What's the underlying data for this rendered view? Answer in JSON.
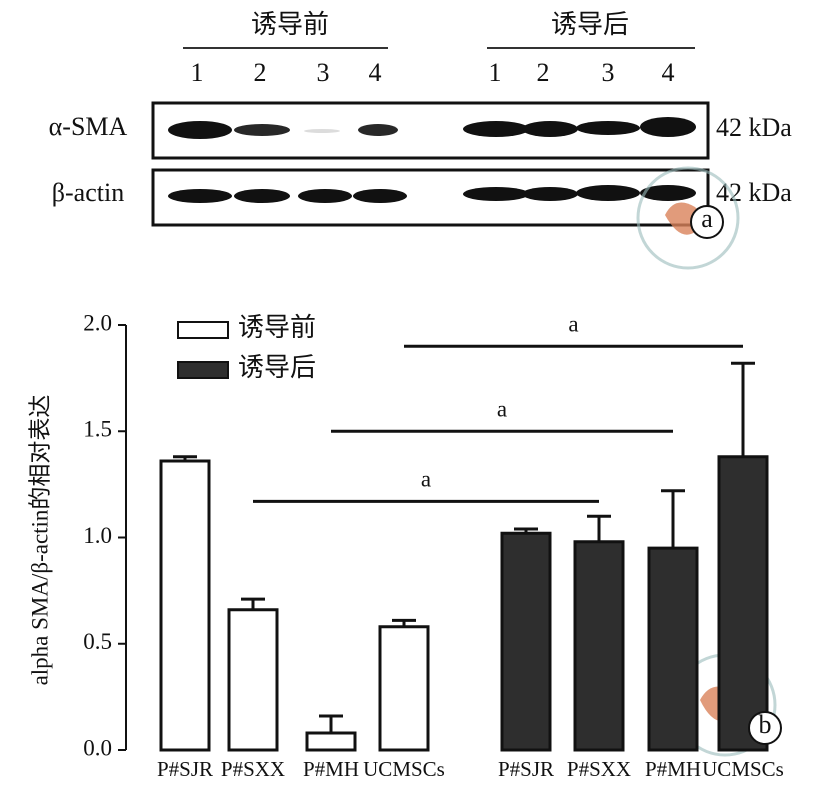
{
  "blot": {
    "groups": [
      "诱导前",
      "诱导后"
    ],
    "lanes": [
      "1",
      "2",
      "3",
      "4",
      "1",
      "2",
      "3",
      "4"
    ],
    "rows": [
      {
        "label": "α-SMA",
        "size": "42 kDa"
      },
      {
        "label": "β-actin",
        "size": "42 kDa"
      }
    ],
    "panel_label": "a"
  },
  "chart_data": {
    "type": "bar",
    "panel_label": "b",
    "y_label": "alpha SMA/β-actin的相对表达",
    "categories": [
      "P#SJR",
      "P#SXX",
      "P#MH",
      "UCMSCs",
      "P#SJR",
      "P#SXX",
      "P#MH",
      "UCMSCs"
    ],
    "series": [
      {
        "name": "诱导前",
        "color": "#ffffff",
        "values": [
          1.36,
          0.66,
          0.08,
          0.58,
          null,
          null,
          null,
          null
        ],
        "errors": [
          0.02,
          0.05,
          0.08,
          0.03,
          null,
          null,
          null,
          null
        ]
      },
      {
        "name": "诱导后",
        "color": "#2e2e2e",
        "values": [
          null,
          null,
          null,
          null,
          1.02,
          0.98,
          0.95,
          1.38
        ],
        "errors": [
          null,
          null,
          null,
          null,
          0.02,
          0.12,
          0.27,
          0.44
        ]
      }
    ],
    "ylim": [
      0,
      2
    ],
    "yticks": [
      {
        "value": 0,
        "label": "0.0"
      },
      {
        "value": 0.5,
        "label": "0.5"
      },
      {
        "value": 1,
        "label": "1.0"
      },
      {
        "value": 1.5,
        "label": "1.5"
      },
      {
        "value": 2,
        "label": "2.0"
      }
    ],
    "legend": "upper left",
    "annotations": [
      {
        "text": "a",
        "from": 1,
        "to": 5,
        "y": 1.17
      },
      {
        "text": "a",
        "from": 2,
        "to": 6,
        "y": 1.5
      },
      {
        "text": "a",
        "from": 3,
        "to": 7,
        "y": 1.9
      }
    ]
  }
}
